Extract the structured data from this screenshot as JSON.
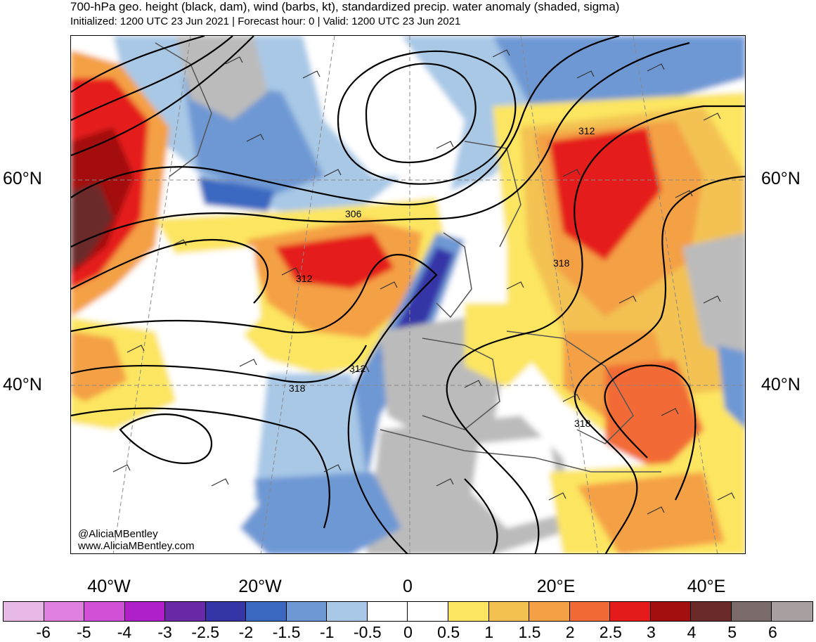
{
  "header": {
    "title": "700-hPa geo. height (black, dam), wind (barbs, kt), standardized precip. water anomaly (shaded, sigma)",
    "subtitle": "Initialized: 1200 UTC 23 Jun 2021 | Forecast hour: 0 | Valid: 1200 UTC 23 Jun 2021"
  },
  "map": {
    "lat_labels": [
      "60°N",
      "40°N"
    ],
    "lon_labels": [
      "40°W",
      "20°W",
      "0",
      "20°E",
      "40°E"
    ],
    "contour_labels": [
      "306",
      "312",
      "312",
      "312",
      "318",
      "318",
      "318"
    ],
    "watermark": [
      "@AliciaMBentley",
      "www.AliciaMBentley.com"
    ]
  },
  "colorbar": {
    "colors": [
      "#e8b8e6",
      "#e080e0",
      "#d050d8",
      "#b020c8",
      "#6a2aa8",
      "#3535a8",
      "#3a68c0",
      "#6e98d4",
      "#a8c8e6",
      "#ffffff",
      "#ffffff",
      "#fce560",
      "#f3c252",
      "#f4a045",
      "#f26a35",
      "#e51b1b",
      "#a30e0e",
      "#6b2a2a",
      "#7a6a6a",
      "#a89f9f"
    ],
    "ticks": [
      "-6",
      "-5",
      "-4",
      "-3",
      "-2.5",
      "-2",
      "-1.5",
      "-1",
      "-0.5",
      "0",
      "0.5",
      "1",
      "1.5",
      "2",
      "2.5",
      "3",
      "4",
      "5",
      "6"
    ]
  }
}
